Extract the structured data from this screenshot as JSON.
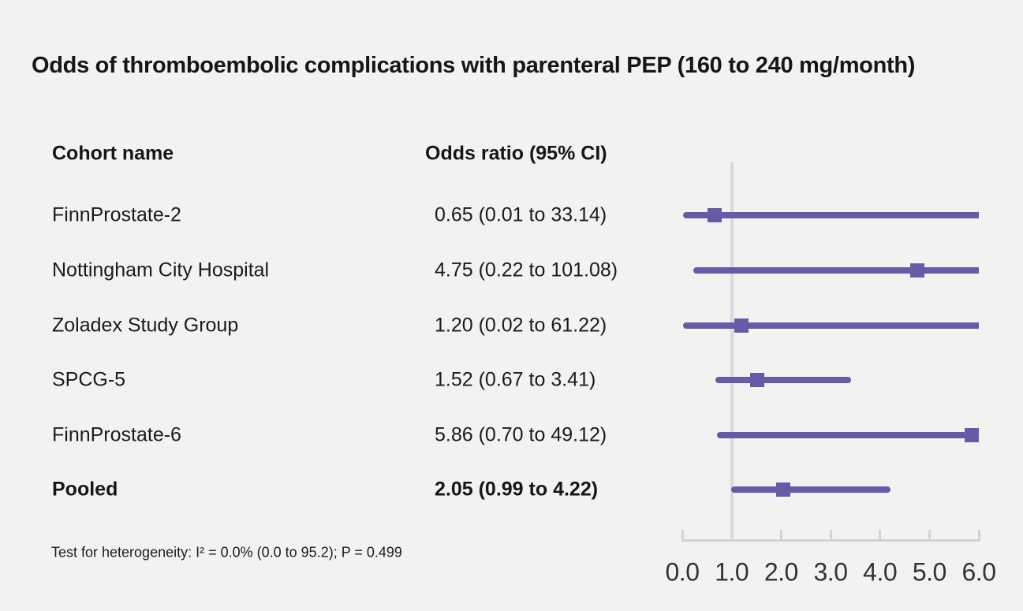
{
  "title": "Odds of thromboembolic complications with parenteral PEP (160 to 240 mg/month)",
  "columns": {
    "cohort": "Cohort name",
    "odds": "Odds ratio (95% CI)"
  },
  "footnote": "Test for heterogeneity: I² = 0.0% (0.0 to 95.2); P = 0.499",
  "colors": {
    "accent": "#685aa6",
    "refline": "#d7dae1",
    "axis": "#cdd4db",
    "background": "#f2f2f1",
    "text": "#1b1b1b"
  },
  "chart_data": {
    "type": "forest",
    "title": "Odds of thromboembolic complications with parenteral PEP (160 to 240 mg/month)",
    "rows": [
      {
        "label": "FinnProstate-2",
        "display": "0.65 (0.01 to 33.14)",
        "or": 0.65,
        "lo": 0.01,
        "hi": 33.14,
        "bold": false
      },
      {
        "label": "Nottingham City Hospital",
        "display": "4.75 (0.22 to 101.08)",
        "or": 4.75,
        "lo": 0.22,
        "hi": 101.08,
        "bold": false
      },
      {
        "label": "Zoladex Study Group",
        "display": "1.20 (0.02 to 61.22)",
        "or": 1.2,
        "lo": 0.02,
        "hi": 61.22,
        "bold": false
      },
      {
        "label": "SPCG-5",
        "display": "1.52 (0.67 to 3.41)",
        "or": 1.52,
        "lo": 0.67,
        "hi": 3.41,
        "bold": false
      },
      {
        "label": "FinnProstate-6",
        "display": "5.86 (0.70 to 49.12)",
        "or": 5.86,
        "lo": 0.7,
        "hi": 49.12,
        "bold": false
      },
      {
        "label": "Pooled",
        "display": "2.05 (0.99 to 4.22)",
        "or": 2.05,
        "lo": 0.99,
        "hi": 4.22,
        "bold": true
      }
    ],
    "xaxis": {
      "min": 0,
      "max": 6,
      "ticks": [
        0.0,
        1.0,
        2.0,
        3.0,
        4.0,
        5.0,
        6.0
      ],
      "tick_labels": [
        "0.0",
        "1.0",
        "2.0",
        "3.0",
        "4.0",
        "5.0",
        "6.0"
      ],
      "reference_line": 1.0
    },
    "legend": null,
    "grid": false
  }
}
